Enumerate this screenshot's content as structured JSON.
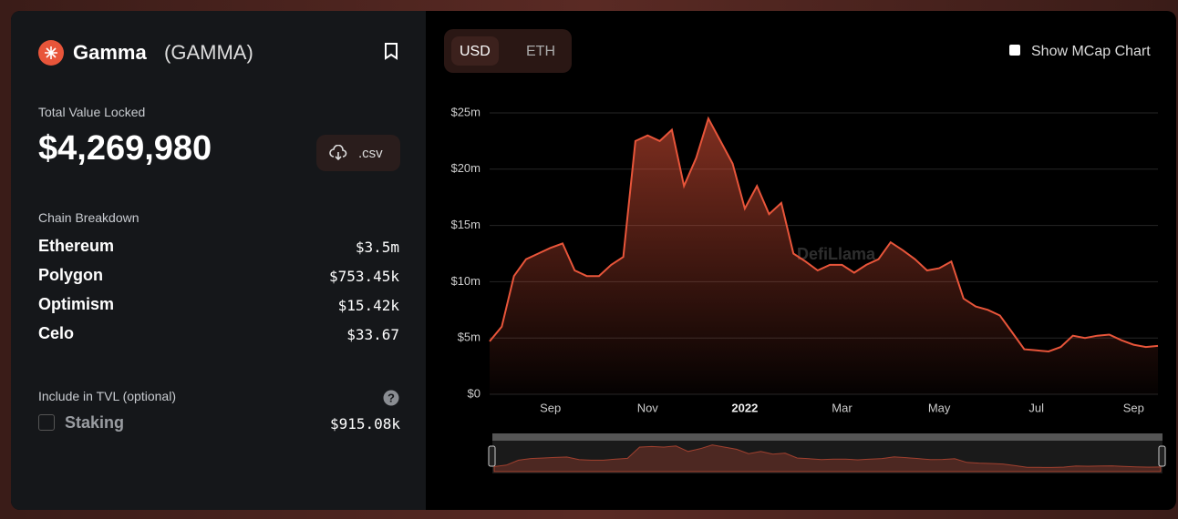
{
  "header": {
    "name": "Gamma",
    "ticker": "(GAMMA)"
  },
  "tvl": {
    "label": "Total Value Locked",
    "value": "$4,269,980",
    "download": ".csv"
  },
  "chains": {
    "title": "Chain Breakdown",
    "rows": [
      {
        "name": "Ethereum",
        "value": "$3.5m"
      },
      {
        "name": "Polygon",
        "value": "$753.45k"
      },
      {
        "name": "Optimism",
        "value": "$15.42k"
      },
      {
        "name": "Celo",
        "value": "$33.67"
      }
    ]
  },
  "include": {
    "title": "Include in TVL (optional)",
    "options": [
      {
        "name": "Staking",
        "value": "$915.08k"
      }
    ]
  },
  "currency": [
    "USD",
    "ETH"
  ],
  "mcap_toggle": "Show MCap Chart",
  "chart_data": {
    "type": "area",
    "watermark": "DefiLlama",
    "color": "#e8553a",
    "grid": true,
    "categories": [
      null,
      null,
      null,
      null,
      null,
      "Sep",
      null,
      null,
      null,
      null,
      null,
      null,
      null,
      "Nov",
      null,
      null,
      null,
      null,
      null,
      null,
      null,
      "2022",
      null,
      null,
      null,
      null,
      null,
      null,
      null,
      "Mar",
      null,
      null,
      null,
      null,
      null,
      null,
      null,
      "May",
      null,
      null,
      null,
      null,
      null,
      null,
      null,
      "Jul",
      null,
      null,
      null,
      null,
      null,
      null,
      null,
      "Sep",
      null,
      null
    ],
    "values": [
      4.7,
      6,
      10.5,
      12,
      12.5,
      13,
      13.4,
      11,
      10.5,
      10.5,
      11.5,
      12.2,
      22.5,
      23,
      22.5,
      23.5,
      18.5,
      21,
      24.5,
      22.5,
      20.5,
      16.5,
      18.5,
      16,
      17,
      12.5,
      11.8,
      11,
      11.5,
      11.5,
      10.8,
      11.5,
      12,
      13.5,
      12.8,
      12,
      11,
      11.2,
      11.8,
      8.5,
      7.8,
      7.5,
      7,
      5.5,
      4,
      3.9,
      3.8,
      4.2,
      5.2,
      5,
      5.2,
      5.3,
      4.8,
      4.4,
      4.2,
      4.3
    ],
    "ylim": [
      0,
      25
    ],
    "yticks": [
      {
        "value": 0,
        "label": "$0"
      },
      {
        "value": 5,
        "label": "$5m"
      },
      {
        "value": 10,
        "label": "$10m"
      },
      {
        "value": 15,
        "label": "$15m"
      },
      {
        "value": 20,
        "label": "$20m"
      },
      {
        "value": 25,
        "label": "$25m"
      }
    ]
  }
}
